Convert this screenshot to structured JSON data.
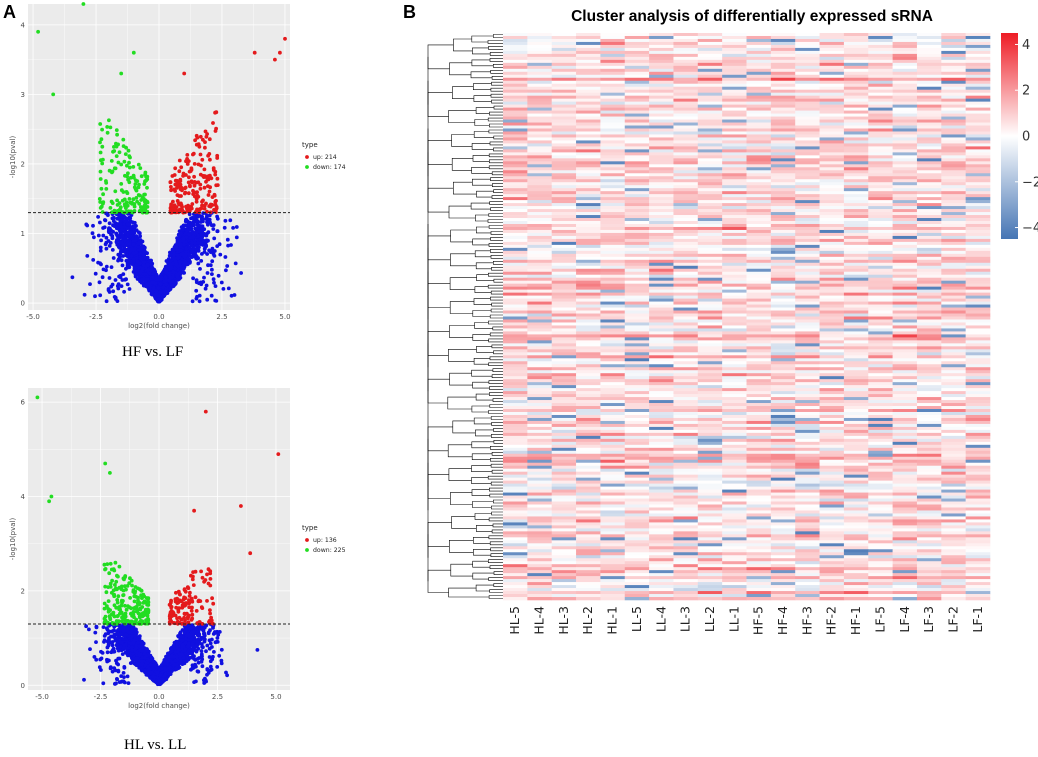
{
  "figure": {
    "panel_a_label": "A",
    "panel_b_label": "B",
    "heatmap_title": "Cluster analysis of differentially expressed sRNA",
    "caption_top": "HF vs. LF",
    "caption_bottom": "HL vs. LL"
  },
  "colors": {
    "up": "#e41a1c",
    "down": "#22dd22",
    "ns": "#1010e0",
    "panel_bg": "#ebebeb",
    "grid": "#ffffff",
    "heat_low": "#4575b4",
    "heat_mid": "#ffffff",
    "heat_high": "#ee1c25"
  },
  "chart_data": [
    {
      "type": "scatter",
      "name": "volcano-hf-vs-lf",
      "title": "",
      "xlabel": "log2(fold change)",
      "ylabel": "-log10(pval)",
      "xlim": [
        -5.2,
        5.2
      ],
      "ylim": [
        -0.1,
        4.3
      ],
      "xticks": [
        -5.0,
        -2.5,
        0.0,
        2.5,
        5.0
      ],
      "xtick_labels": [
        "-5.0",
        "-2.5",
        "0.0",
        "2.5",
        "5.0"
      ],
      "yticks": [
        0,
        1,
        2,
        3,
        4
      ],
      "ytick_labels": [
        "0",
        "1",
        "2",
        "3",
        "4"
      ],
      "threshold_y": 1.3,
      "legend_title": "type",
      "legend": [
        {
          "key": "up",
          "label": "up: 214"
        },
        {
          "key": "down",
          "label": "down: 174"
        }
      ],
      "counts": {
        "up": 214,
        "down": 174
      },
      "notable_points": [
        {
          "x": -3.0,
          "y": 4.3,
          "type": "down"
        },
        {
          "x": -4.8,
          "y": 3.9,
          "type": "down"
        },
        {
          "x": -4.2,
          "y": 3.0,
          "type": "down"
        },
        {
          "x": 5.0,
          "y": 3.8,
          "type": "up"
        },
        {
          "x": 4.8,
          "y": 3.6,
          "type": "up"
        },
        {
          "x": 3.8,
          "y": 3.6,
          "type": "up"
        },
        {
          "x": 4.6,
          "y": 3.5,
          "type": "up"
        },
        {
          "x": -1.0,
          "y": 3.6,
          "type": "down"
        },
        {
          "x": 1.0,
          "y": 3.3,
          "type": "up"
        },
        {
          "x": -1.5,
          "y": 3.3,
          "type": "down"
        }
      ]
    },
    {
      "type": "scatter",
      "name": "volcano-hl-vs-ll",
      "title": "",
      "xlabel": "log2(fold change)",
      "ylabel": "-log10(pval)",
      "xlim": [
        -5.6,
        5.6
      ],
      "ylim": [
        -0.1,
        6.3
      ],
      "xticks": [
        -5.0,
        -2.5,
        0.0,
        2.5,
        5.0
      ],
      "xtick_labels": [
        "-5.0",
        "-2.5",
        "0.0",
        "2.5",
        "5.0"
      ],
      "yticks": [
        0,
        2,
        4,
        6
      ],
      "ytick_labels": [
        "0",
        "2",
        "4",
        "6"
      ],
      "threshold_y": 1.3,
      "legend_title": "type",
      "legend": [
        {
          "key": "up",
          "label": "up: 136"
        },
        {
          "key": "down",
          "label": "down: 225"
        }
      ],
      "counts": {
        "up": 136,
        "down": 225
      },
      "notable_points": [
        {
          "x": -5.2,
          "y": 6.1,
          "type": "down"
        },
        {
          "x": 2.0,
          "y": 5.8,
          "type": "up"
        },
        {
          "x": 5.1,
          "y": 4.9,
          "type": "up"
        },
        {
          "x": -2.3,
          "y": 4.7,
          "type": "down"
        },
        {
          "x": -2.1,
          "y": 4.5,
          "type": "down"
        },
        {
          "x": -4.6,
          "y": 4.0,
          "type": "down"
        },
        {
          "x": 3.5,
          "y": 3.8,
          "type": "up"
        },
        {
          "x": 1.5,
          "y": 3.7,
          "type": "up"
        },
        {
          "x": 3.9,
          "y": 2.8,
          "type": "up"
        },
        {
          "x": -4.7,
          "y": 3.9,
          "type": "down"
        }
      ]
    },
    {
      "type": "heatmap",
      "name": "cluster-heatmap",
      "title": "Cluster analysis of differentially expressed sRNA",
      "columns": [
        "HL-5",
        "HL-4",
        "HL-3",
        "HL-2",
        "HL-1",
        "LL-5",
        "LL-4",
        "LL-3",
        "LL-2",
        "LL-1",
        "HF-5",
        "HF-4",
        "HF-3",
        "HF-2",
        "HF-1",
        "LF-5",
        "LF-4",
        "LF-3",
        "LF-2",
        "LF-1"
      ],
      "row_dendrogram": true,
      "value_range": [
        -4.5,
        4.5
      ],
      "colorbar_ticks": [
        4,
        2,
        0,
        -2,
        -4
      ],
      "colorbar_tick_labels": [
        "4",
        "2",
        "0",
        "−2",
        "−4"
      ]
    }
  ]
}
